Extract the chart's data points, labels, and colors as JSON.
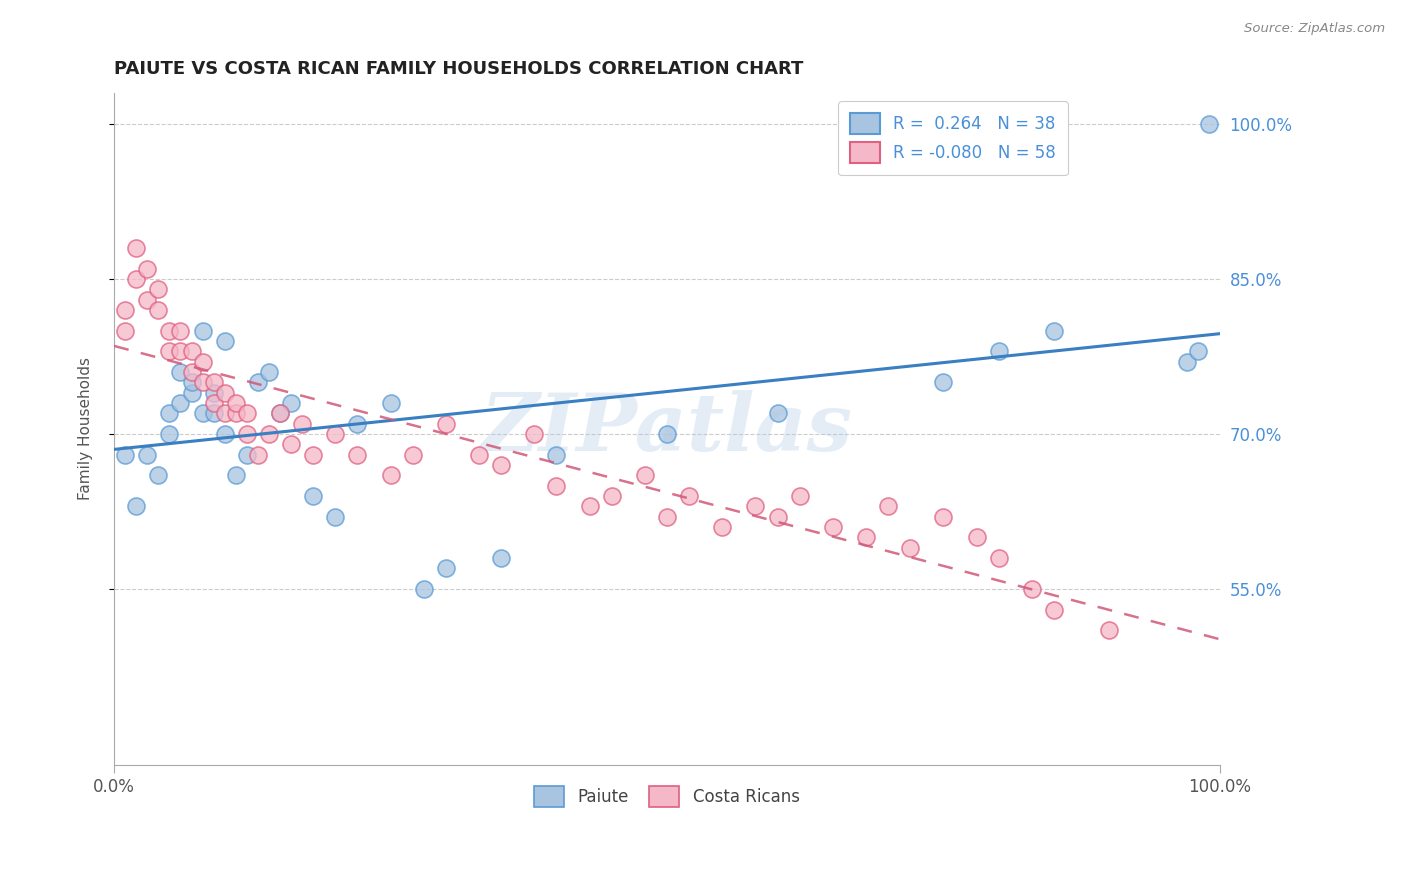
{
  "title": "PAIUTE VS COSTA RICAN FAMILY HOUSEHOLDS CORRELATION CHART",
  "source": "Source: ZipAtlas.com",
  "ylabel": "Family Households",
  "right_ytick_vals": [
    55,
    70,
    85,
    100
  ],
  "right_ytick_labels": [
    "55.0%",
    "70.0%",
    "85.0%",
    "100.0%"
  ],
  "legend1_label": "R =  0.264   N = 38",
  "legend2_label": "R = -0.080   N = 58",
  "bottom_legend1": "Paiute",
  "bottom_legend2": "Costa Ricans",
  "paiute_fill": "#a8c4e0",
  "paiute_edge": "#5b9bd5",
  "costarican_fill": "#f4b8c8",
  "costarican_edge": "#e06080",
  "paiute_line_color": "#3a7fc1",
  "costarican_line_color": "#d05878",
  "watermark": "ZIPatlas",
  "ylim_low": 38,
  "ylim_high": 103,
  "paiute_x": [
    1,
    2,
    3,
    4,
    5,
    5,
    6,
    6,
    7,
    7,
    8,
    8,
    9,
    9,
    10,
    10,
    11,
    12,
    13,
    14,
    15,
    16,
    18,
    20,
    22,
    25,
    28,
    30,
    35,
    40,
    50,
    60,
    75,
    80,
    85,
    97,
    98,
    99
  ],
  "paiute_y": [
    68,
    63,
    68,
    66,
    72,
    70,
    73,
    76,
    74,
    75,
    80,
    72,
    74,
    72,
    79,
    70,
    66,
    68,
    75,
    76,
    72,
    73,
    64,
    62,
    71,
    73,
    55,
    57,
    58,
    68,
    70,
    72,
    75,
    78,
    80,
    77,
    78,
    100
  ],
  "costarican_x": [
    1,
    1,
    2,
    2,
    3,
    3,
    4,
    4,
    5,
    5,
    6,
    6,
    7,
    7,
    8,
    8,
    9,
    9,
    10,
    10,
    11,
    11,
    12,
    12,
    13,
    14,
    15,
    16,
    17,
    18,
    20,
    22,
    25,
    27,
    30,
    33,
    35,
    38,
    40,
    43,
    45,
    48,
    50,
    52,
    55,
    58,
    60,
    62,
    65,
    68,
    70,
    72,
    75,
    78,
    80,
    83,
    85,
    90
  ],
  "costarican_y": [
    80,
    82,
    85,
    88,
    83,
    86,
    82,
    84,
    80,
    78,
    78,
    80,
    76,
    78,
    75,
    77,
    73,
    75,
    72,
    74,
    72,
    73,
    70,
    72,
    68,
    70,
    72,
    69,
    71,
    68,
    70,
    68,
    66,
    68,
    71,
    68,
    67,
    70,
    65,
    63,
    64,
    66,
    62,
    64,
    61,
    63,
    62,
    64,
    61,
    60,
    63,
    59,
    62,
    60,
    58,
    55,
    53,
    51
  ]
}
